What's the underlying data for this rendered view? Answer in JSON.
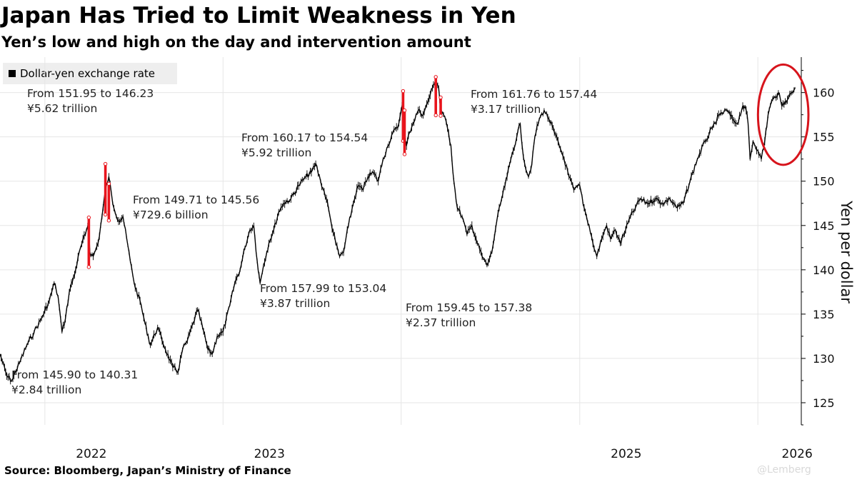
{
  "header": {
    "title": "Japan Has Tried to Limit Weakness in Yen",
    "subtitle": "Yen’s low and high on the day and intervention amount"
  },
  "footer": {
    "source": "Source: Bloomberg, Japan’s Ministry of Finance",
    "watermark": "@Lemberg"
  },
  "colors": {
    "line": "#000000",
    "intervention": "#e8141c",
    "circle": "#d7141c",
    "grid": "#e6e6e6",
    "legend_bg": "#eeeeee"
  },
  "chart_data": {
    "type": "line",
    "title": "Japan Has Tried to Limit Weakness in Yen",
    "subtitle": "Yen’s low and high on the day and intervention amount",
    "ylabel": "Yen per dollar",
    "xlabel": "",
    "ylim": [
      122.5,
      164
    ],
    "xlim": [
      "2021-10-01",
      "2026-03-31"
    ],
    "y_ticks": [
      125,
      130,
      135,
      140,
      145,
      150,
      155,
      160
    ],
    "x_ticks": [
      {
        "label": "2022",
        "date": "2022-01-01"
      },
      {
        "label": "2023",
        "date": "2023-01-01"
      },
      {
        "label": "2025",
        "date": "2025-01-01"
      },
      {
        "label": "2026",
        "date": "2026-01-01"
      }
    ],
    "grid": true,
    "legend": {
      "position": "top-left",
      "entries": [
        "Dollar-yen exchange rate"
      ]
    },
    "series": [
      {
        "name": "Dollar-yen exchange rate",
        "points": [
          [
            "2021-10-01",
            130.5
          ],
          [
            "2021-10-15",
            128.0
          ],
          [
            "2021-10-25",
            127.5
          ],
          [
            "2021-11-10",
            129.5
          ],
          [
            "2021-11-25",
            131.5
          ],
          [
            "2021-12-10",
            133.0
          ],
          [
            "2021-12-25",
            134.5
          ],
          [
            "2022-01-10",
            136.5
          ],
          [
            "2022-01-20",
            138.5
          ],
          [
            "2022-01-28",
            137.0
          ],
          [
            "2022-02-05",
            133.0
          ],
          [
            "2022-02-12",
            134.5
          ],
          [
            "2022-02-20",
            137.5
          ],
          [
            "2022-03-05",
            140.0
          ],
          [
            "2022-03-15",
            142.5
          ],
          [
            "2022-03-25",
            144.0
          ],
          [
            "2022-04-01",
            145.5
          ],
          [
            "2022-04-03",
            142.0
          ],
          [
            "2022-04-10",
            141.5
          ],
          [
            "2022-04-20",
            143.0
          ],
          [
            "2022-04-28",
            146.0
          ],
          [
            "2022-05-05",
            149.0
          ],
          [
            "2022-05-12",
            150.5
          ],
          [
            "2022-05-20",
            147.5
          ],
          [
            "2022-06-01",
            145.5
          ],
          [
            "2022-06-10",
            146.0
          ],
          [
            "2022-06-25",
            141.0
          ],
          [
            "2022-07-05",
            138.0
          ],
          [
            "2022-07-15",
            136.5
          ],
          [
            "2022-07-25",
            134.0
          ],
          [
            "2022-08-05",
            131.5
          ],
          [
            "2022-08-20",
            133.5
          ],
          [
            "2022-09-05",
            131.0
          ],
          [
            "2022-09-20",
            129.0
          ],
          [
            "2022-10-01",
            128.5
          ],
          [
            "2022-10-10",
            131.0
          ],
          [
            "2022-10-20",
            132.0
          ],
          [
            "2022-11-01",
            134.0
          ],
          [
            "2022-11-10",
            135.5
          ],
          [
            "2022-11-20",
            133.5
          ],
          [
            "2022-12-01",
            131.0
          ],
          [
            "2022-12-10",
            130.5
          ],
          [
            "2022-12-20",
            132.5
          ],
          [
            "2023-01-01",
            133.0
          ],
          [
            "2023-01-15",
            136.0
          ],
          [
            "2023-01-25",
            138.5
          ],
          [
            "2023-02-05",
            140.0
          ],
          [
            "2023-02-15",
            142.5
          ],
          [
            "2023-02-25",
            144.5
          ],
          [
            "2023-03-05",
            145.0
          ],
          [
            "2023-03-12",
            141.0
          ],
          [
            "2023-03-18",
            138.5
          ],
          [
            "2023-03-25",
            140.5
          ],
          [
            "2023-04-05",
            143.0
          ],
          [
            "2023-04-15",
            144.5
          ],
          [
            "2023-04-25",
            146.5
          ],
          [
            "2023-05-05",
            147.5
          ],
          [
            "2023-05-20",
            148.0
          ],
          [
            "2023-06-05",
            149.5
          ],
          [
            "2023-06-20",
            150.5
          ],
          [
            "2023-07-01",
            151.0
          ],
          [
            "2023-07-10",
            152.0
          ],
          [
            "2023-07-20",
            150.0
          ],
          [
            "2023-08-01",
            148.0
          ],
          [
            "2023-08-10",
            145.5
          ],
          [
            "2023-08-20",
            143.0
          ],
          [
            "2023-08-28",
            141.5
          ],
          [
            "2023-09-05",
            142.0
          ],
          [
            "2023-09-15",
            145.0
          ],
          [
            "2023-09-25",
            147.5
          ],
          [
            "2023-10-05",
            149.5
          ],
          [
            "2023-10-15",
            149.0
          ],
          [
            "2023-10-25",
            150.5
          ],
          [
            "2023-11-05",
            151.0
          ],
          [
            "2023-11-15",
            150.0
          ],
          [
            "2023-11-25",
            152.5
          ],
          [
            "2023-12-05",
            154.0
          ],
          [
            "2023-12-15",
            155.5
          ],
          [
            "2023-12-25",
            156.0
          ],
          [
            "2024-01-01",
            158.0
          ],
          [
            "2024-01-05",
            159.5
          ],
          [
            "2024-01-08",
            155.0
          ],
          [
            "2024-01-12",
            154.0
          ],
          [
            "2024-01-18",
            155.5
          ],
          [
            "2024-01-25",
            156.5
          ],
          [
            "2024-02-05",
            158.0
          ],
          [
            "2024-02-15",
            157.5
          ],
          [
            "2024-02-25",
            159.0
          ],
          [
            "2024-03-05",
            160.5
          ],
          [
            "2024-03-12",
            161.5
          ],
          [
            "2024-03-18",
            160.5
          ],
          [
            "2024-03-22",
            158.0
          ],
          [
            "2024-03-28",
            157.5
          ],
          [
            "2024-04-05",
            156.0
          ],
          [
            "2024-04-12",
            154.0
          ],
          [
            "2024-04-18",
            150.0
          ],
          [
            "2024-04-25",
            147.0
          ],
          [
            "2024-05-05",
            146.0
          ],
          [
            "2024-05-15",
            144.0
          ],
          [
            "2024-05-25",
            145.0
          ],
          [
            "2024-06-05",
            143.0
          ],
          [
            "2024-06-15",
            141.5
          ],
          [
            "2024-06-25",
            140.5
          ],
          [
            "2024-07-05",
            142.0
          ],
          [
            "2024-07-15",
            145.5
          ],
          [
            "2024-07-25",
            148.0
          ],
          [
            "2024-08-05",
            150.5
          ],
          [
            "2024-08-15",
            153.0
          ],
          [
            "2024-08-25",
            155.0
          ],
          [
            "2024-09-01",
            156.5
          ],
          [
            "2024-09-05",
            154.0
          ],
          [
            "2024-09-10",
            152.0
          ],
          [
            "2024-09-18",
            150.5
          ],
          [
            "2024-09-25",
            152.0
          ],
          [
            "2024-10-01",
            155.0
          ],
          [
            "2024-10-10",
            157.0
          ],
          [
            "2024-10-20",
            158.0
          ],
          [
            "2024-10-30",
            157.0
          ],
          [
            "2024-11-10",
            155.5
          ],
          [
            "2024-11-20",
            154.0
          ],
          [
            "2024-11-30",
            152.5
          ],
          [
            "2024-12-10",
            150.5
          ],
          [
            "2024-12-20",
            149.0
          ],
          [
            "2025-01-01",
            149.5
          ],
          [
            "2025-01-10",
            147.0
          ],
          [
            "2025-01-20",
            145.0
          ],
          [
            "2025-01-28",
            143.0
          ],
          [
            "2025-02-05",
            141.5
          ],
          [
            "2025-02-15",
            143.5
          ],
          [
            "2025-02-25",
            145.0
          ],
          [
            "2025-03-05",
            143.5
          ],
          [
            "2025-03-15",
            144.5
          ],
          [
            "2025-03-25",
            143.0
          ],
          [
            "2025-04-05",
            144.5
          ],
          [
            "2025-04-15",
            146.0
          ],
          [
            "2025-04-25",
            147.0
          ],
          [
            "2025-05-05",
            148.0
          ],
          [
            "2025-05-20",
            147.5
          ],
          [
            "2025-06-05",
            148.0
          ],
          [
            "2025-06-20",
            147.5
          ],
          [
            "2025-07-05",
            148.0
          ],
          [
            "2025-07-20",
            147.0
          ],
          [
            "2025-08-01",
            147.5
          ],
          [
            "2025-08-15",
            150.0
          ],
          [
            "2025-08-30",
            152.5
          ],
          [
            "2025-09-15",
            154.5
          ],
          [
            "2025-09-30",
            156.0
          ],
          [
            "2025-10-15",
            157.5
          ],
          [
            "2025-10-30",
            158.0
          ],
          [
            "2025-11-10",
            157.0
          ],
          [
            "2025-11-20",
            156.5
          ],
          [
            "2025-12-01",
            158.5
          ],
          [
            "2025-12-08",
            158.0
          ],
          [
            "2025-12-12",
            156.5
          ],
          [
            "2025-12-16",
            152.5
          ],
          [
            "2025-12-22",
            154.5
          ],
          [
            "2026-01-01",
            153.5
          ],
          [
            "2026-01-08",
            152.5
          ],
          [
            "2026-01-15",
            154.5
          ],
          [
            "2026-01-22",
            157.5
          ],
          [
            "2026-01-29",
            159.0
          ],
          [
            "2026-02-05",
            159.5
          ],
          [
            "2026-02-12",
            160.0
          ],
          [
            "2026-02-19",
            158.5
          ],
          [
            "2026-02-26",
            159.0
          ],
          [
            "2026-03-05",
            159.5
          ],
          [
            "2026-03-12",
            160.0
          ],
          [
            "2026-03-18",
            160.5
          ]
        ]
      }
    ],
    "interventions": [
      {
        "label_line1": "From 145.90 to 140.31",
        "label_line2": "¥2.84 trillion",
        "date": "2022-04-01",
        "high": 145.9,
        "low": 140.31,
        "label_pos": "bottom-left"
      },
      {
        "label_line1": "From 151.95 to 146.23",
        "label_line2": "¥5.62 trillion",
        "date": "2022-05-05",
        "high": 151.95,
        "low": 146.23,
        "label_pos": "top-left"
      },
      {
        "label_line1": "From 149.71 to 145.56",
        "label_line2": "¥729.6 billion",
        "date": "2022-05-12",
        "high": 149.71,
        "low": 145.56,
        "label_pos": "middle-left"
      },
      {
        "label_line1": "From 160.17 to 154.54",
        "label_line2": "¥5.92 trillion",
        "date": "2024-01-05",
        "high": 160.17,
        "low": 154.54,
        "label_pos": "middle"
      },
      {
        "label_line1": "From 157.99 to 153.04",
        "label_line2": "¥3.87 trillion",
        "date": "2024-01-08",
        "high": 157.99,
        "low": 153.04,
        "label_pos": "lower-middle"
      },
      {
        "label_line1": "From 161.76 to 157.44",
        "label_line2": "¥3.17 trillion",
        "date": "2024-03-12",
        "high": 161.76,
        "low": 157.44,
        "label_pos": "top-right"
      },
      {
        "label_line1": "From 159.45 to 157.38",
        "label_line2": "¥2.37 trillion",
        "date": "2024-03-22",
        "high": 159.45,
        "low": 157.38,
        "label_pos": "lower-right"
      }
    ],
    "highlight": {
      "shape": "ellipse",
      "from": "2026-01-10",
      "to": "2026-03-31",
      "y_low": 152,
      "y_high": 163
    }
  }
}
